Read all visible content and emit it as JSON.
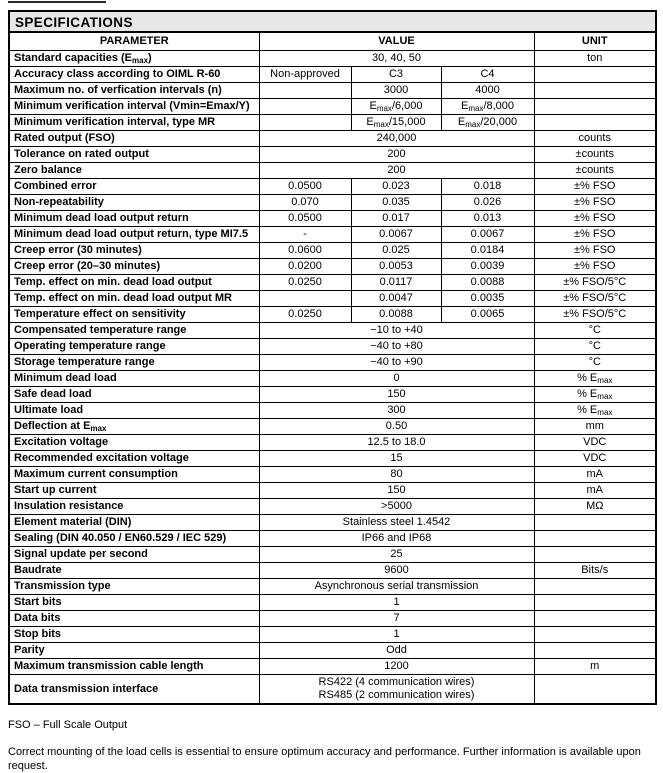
{
  "title": "SPECIFICATIONS",
  "columns": {
    "parameter": "PARAMETER",
    "value": "VALUE",
    "unit": "UNIT"
  },
  "rows": [
    {
      "parameter": "Standard capacities (E{max})",
      "values": [
        "30, 40, 50"
      ],
      "unit": "ton"
    },
    {
      "parameter": "Accuracy class according to OIML R-60",
      "values": [
        "Non-approved",
        "C3",
        "C4"
      ],
      "unit": ""
    },
    {
      "parameter": "Maximum no. of verfication intervals (n)",
      "values": [
        "",
        "3000",
        "4000"
      ],
      "unit": ""
    },
    {
      "parameter": "Minimum verification interval (Vmin=Emax/Y)",
      "values": [
        "",
        "E{max}/6,000",
        "E{max}/8,000"
      ],
      "unit": ""
    },
    {
      "parameter": "Minimum verification interval, type MR",
      "values": [
        "",
        "E{max}/15,000",
        "E{max}/20,000"
      ],
      "unit": ""
    },
    {
      "parameter": "Rated output (FSO)",
      "values": [
        "240,000"
      ],
      "unit": "counts"
    },
    {
      "parameter": "Tolerance on rated output",
      "values": [
        "200"
      ],
      "unit": "±counts"
    },
    {
      "parameter": "Zero balance",
      "values": [
        "200"
      ],
      "unit": "±counts"
    },
    {
      "parameter": "Combined error",
      "values": [
        "0.0500",
        "0.023",
        "0.018"
      ],
      "unit": "±% FSO"
    },
    {
      "parameter": "Non-repeatability",
      "values": [
        "0.070",
        "0.035",
        "0.026"
      ],
      "unit": "±% FSO"
    },
    {
      "parameter": "Minimum dead load output return",
      "values": [
        "0.0500",
        "0.017",
        "0.013"
      ],
      "unit": "±% FSO"
    },
    {
      "parameter": "Minimum dead load output return, type MI7.5",
      "values": [
        "-",
        "0.0067",
        "0.0067"
      ],
      "unit": "±% FSO"
    },
    {
      "parameter": "Creep error (30 minutes)",
      "values": [
        "0.0600",
        "0.025",
        "0.0184"
      ],
      "unit": "±% FSO"
    },
    {
      "parameter": "Creep error (20–30 minutes)",
      "values": [
        "0.0200",
        "0.0053",
        "0.0039"
      ],
      "unit": "±% FSO"
    },
    {
      "parameter": "Temp. effect on min. dead load output",
      "values": [
        "0.0250",
        "0.0117",
        "0.0088"
      ],
      "unit": "±% FSO/5°C"
    },
    {
      "parameter": "Temp. effect on min. dead load output MR",
      "values": [
        "",
        "0.0047",
        "0.0035"
      ],
      "unit": "±% FSO/5°C"
    },
    {
      "parameter": "Temperature effect on sensitivity",
      "values": [
        "0.0250",
        "0.0088",
        "0.0065"
      ],
      "unit": "±% FSO/5°C"
    },
    {
      "parameter": "Compensated temperature range",
      "values": [
        "−10 to +40"
      ],
      "unit": "°C"
    },
    {
      "parameter": "Operating temperature range",
      "values": [
        "−40 to +80"
      ],
      "unit": "°C"
    },
    {
      "parameter": "Storage temperature range",
      "values": [
        "−40 to +90"
      ],
      "unit": "°C"
    },
    {
      "parameter": "Minimum dead load",
      "values": [
        "0"
      ],
      "unit": "% E{max}"
    },
    {
      "parameter": "Safe dead load",
      "values": [
        "150"
      ],
      "unit": "% E{max}"
    },
    {
      "parameter": "Ultimate load",
      "values": [
        "300"
      ],
      "unit": "% E{max}"
    },
    {
      "parameter": "Deflection at E{max}",
      "values": [
        "0.50"
      ],
      "unit": "mm"
    },
    {
      "parameter": "Excitation voltage",
      "values": [
        "12.5 to 18.0"
      ],
      "unit": "VDC"
    },
    {
      "parameter": "Recommended excitation voltage",
      "values": [
        "15"
      ],
      "unit": "VDC"
    },
    {
      "parameter": "Maximum current consumption",
      "values": [
        "80"
      ],
      "unit": "mA"
    },
    {
      "parameter": "Start up current",
      "values": [
        "150"
      ],
      "unit": "mA"
    },
    {
      "parameter": "Insulation resistance",
      "values": [
        ">5000"
      ],
      "unit": "MΩ"
    },
    {
      "parameter": "Element material (DIN)",
      "values": [
        "Stainless steel 1.4542"
      ],
      "unit": ""
    },
    {
      "parameter": "Sealing (DIN 40.050 / EN60.529 / IEC 529)",
      "values": [
        "IP66 and IP68"
      ],
      "unit": ""
    },
    {
      "parameter": "Signal update per second",
      "values": [
        "25"
      ],
      "unit": ""
    },
    {
      "parameter": "Baudrate",
      "values": [
        "9600"
      ],
      "unit": "Bits/s"
    },
    {
      "parameter": "Transmission type",
      "values": [
        "Asynchronous serial transmission"
      ],
      "unit": ""
    },
    {
      "parameter": "Start bits",
      "values": [
        "1"
      ],
      "unit": ""
    },
    {
      "parameter": "Data bits",
      "values": [
        "7"
      ],
      "unit": ""
    },
    {
      "parameter": "Stop bits",
      "values": [
        "1"
      ],
      "unit": ""
    },
    {
      "parameter": "Parity",
      "values": [
        "Odd"
      ],
      "unit": ""
    },
    {
      "parameter": "Maximum transmission cable length",
      "values": [
        "1200"
      ],
      "unit": "m"
    },
    {
      "parameter": "Data transmission interface",
      "values": [
        "RS422 (4 communication wires)\nRS485 (2 communication wires)"
      ],
      "unit": ""
    }
  ],
  "footnote": "FSO – Full Scale Output",
  "note": "Correct mounting of the load cells is essential to ensure optimum accuracy and performance. Further information is available upon request.",
  "colors": {
    "header_bg": "#e7e7e7",
    "border": "#000000",
    "text": "#000000",
    "page_bg": "#ffffff"
  }
}
